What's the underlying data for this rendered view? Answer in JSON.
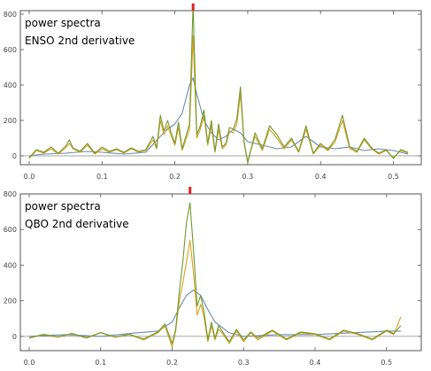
{
  "chart_data": [
    {
      "type": "line",
      "annotations": [
        "power spectra",
        "ENSO 2nd derivative"
      ],
      "xlim": [
        0.0,
        0.52
      ],
      "ylim": [
        -50,
        820
      ],
      "xticks": [
        0.0,
        0.1,
        0.2,
        0.3,
        0.4,
        0.5
      ],
      "xtick_labels": [
        "0.0",
        "0.1",
        "0.2",
        "0.3",
        "0.4",
        "0.5"
      ],
      "yticks": [
        0,
        200,
        400,
        600,
        800
      ],
      "ytick_labels": [
        "0",
        "200",
        "400",
        "600",
        "800"
      ],
      "grid": false,
      "marker": {
        "x": 0.225
      },
      "series": [
        {
          "color": "#6a8caf",
          "x": [
            0.0,
            0.02,
            0.05,
            0.08,
            0.1,
            0.13,
            0.16,
            0.18,
            0.19,
            0.2,
            0.21,
            0.22,
            0.225,
            0.23,
            0.24,
            0.25,
            0.26,
            0.27,
            0.28,
            0.29,
            0.3,
            0.32,
            0.34,
            0.36,
            0.38,
            0.4,
            0.42,
            0.44,
            0.46,
            0.48,
            0.5,
            0.52
          ],
          "values": [
            0,
            10,
            15,
            25,
            20,
            10,
            20,
            110,
            150,
            180,
            240,
            400,
            440,
            350,
            200,
            130,
            90,
            110,
            150,
            130,
            80,
            60,
            40,
            50,
            110,
            50,
            40,
            50,
            30,
            40,
            30,
            10
          ]
        },
        {
          "color": "#d9a020",
          "x": [
            0.0,
            0.01,
            0.02,
            0.03,
            0.04,
            0.05,
            0.055,
            0.06,
            0.07,
            0.08,
            0.09,
            0.1,
            0.11,
            0.12,
            0.13,
            0.14,
            0.15,
            0.16,
            0.17,
            0.175,
            0.18,
            0.185,
            0.19,
            0.195,
            0.2,
            0.205,
            0.21,
            0.215,
            0.22,
            0.225,
            0.23,
            0.235,
            0.24,
            0.245,
            0.25,
            0.255,
            0.26,
            0.265,
            0.27,
            0.275,
            0.28,
            0.285,
            0.29,
            0.295,
            0.3,
            0.31,
            0.32,
            0.33,
            0.34,
            0.35,
            0.36,
            0.37,
            0.38,
            0.39,
            0.4,
            0.41,
            0.42,
            0.43,
            0.44,
            0.45,
            0.46,
            0.47,
            0.48,
            0.49,
            0.5,
            0.51,
            0.52
          ],
          "values": [
            -15,
            30,
            15,
            40,
            10,
            45,
            70,
            40,
            20,
            60,
            10,
            40,
            20,
            35,
            15,
            40,
            20,
            30,
            90,
            40,
            200,
            120,
            170,
            110,
            60,
            160,
            30,
            90,
            150,
            680,
            100,
            150,
            230,
            60,
            170,
            20,
            150,
            40,
            60,
            140,
            130,
            180,
            350,
            70,
            -30,
            110,
            30,
            150,
            100,
            40,
            90,
            20,
            150,
            10,
            60,
            30,
            80,
            200,
            40,
            20,
            90,
            40,
            10,
            30,
            -10,
            30,
            15
          ]
        },
        {
          "color": "#6f9a2e",
          "x": [
            0.0,
            0.01,
            0.02,
            0.03,
            0.04,
            0.05,
            0.055,
            0.06,
            0.07,
            0.08,
            0.09,
            0.1,
            0.11,
            0.12,
            0.13,
            0.14,
            0.15,
            0.16,
            0.17,
            0.175,
            0.18,
            0.185,
            0.19,
            0.195,
            0.2,
            0.205,
            0.21,
            0.215,
            0.22,
            0.225,
            0.23,
            0.235,
            0.24,
            0.245,
            0.25,
            0.255,
            0.26,
            0.265,
            0.27,
            0.275,
            0.28,
            0.285,
            0.29,
            0.295,
            0.3,
            0.31,
            0.32,
            0.33,
            0.34,
            0.35,
            0.36,
            0.37,
            0.38,
            0.39,
            0.4,
            0.41,
            0.42,
            0.43,
            0.44,
            0.45,
            0.46,
            0.47,
            0.48,
            0.49,
            0.5,
            0.51,
            0.52
          ],
          "values": [
            -10,
            35,
            20,
            50,
            15,
            55,
            90,
            45,
            25,
            70,
            15,
            50,
            25,
            40,
            20,
            45,
            25,
            35,
            110,
            45,
            230,
            140,
            200,
            130,
            70,
            190,
            40,
            110,
            180,
            860,
            120,
            170,
            260,
            70,
            200,
            25,
            180,
            50,
            70,
            160,
            150,
            210,
            390,
            80,
            -40,
            130,
            40,
            170,
            120,
            50,
            100,
            25,
            170,
            15,
            70,
            35,
            95,
            230,
            50,
            25,
            100,
            45,
            15,
            35,
            -15,
            35,
            20
          ]
        }
      ]
    },
    {
      "type": "line",
      "annotations": [
        "power spectra",
        "QBO 2nd derivative"
      ],
      "xlim": [
        0.0,
        0.53
      ],
      "ylim": [
        -80,
        800
      ],
      "xticks": [
        0.0,
        0.1,
        0.2,
        0.3,
        0.4,
        0.5
      ],
      "xtick_labels": [
        "0.0",
        "0.1",
        "0.2",
        "0.3",
        "0.4",
        "0.5"
      ],
      "yticks": [
        0,
        200,
        400,
        600,
        800
      ],
      "ytick_labels": [
        "0",
        "200",
        "400",
        "600",
        "800"
      ],
      "grid": false,
      "marker": {
        "x": 0.225
      },
      "series": [
        {
          "color": "#6a8caf",
          "x": [
            0.0,
            0.05,
            0.1,
            0.15,
            0.18,
            0.2,
            0.21,
            0.22,
            0.23,
            0.24,
            0.25,
            0.26,
            0.28,
            0.3,
            0.35,
            0.4,
            0.45,
            0.5,
            0.52
          ],
          "values": [
            0,
            10,
            0,
            20,
            30,
            80,
            160,
            230,
            260,
            230,
            150,
            80,
            20,
            0,
            10,
            10,
            20,
            30,
            30
          ]
        },
        {
          "color": "#d9a020",
          "x": [
            0.0,
            0.02,
            0.04,
            0.06,
            0.08,
            0.1,
            0.12,
            0.14,
            0.16,
            0.18,
            0.19,
            0.2,
            0.205,
            0.21,
            0.215,
            0.22,
            0.225,
            0.23,
            0.235,
            0.24,
            0.245,
            0.25,
            0.255,
            0.26,
            0.265,
            0.27,
            0.28,
            0.29,
            0.3,
            0.31,
            0.32,
            0.34,
            0.36,
            0.38,
            0.4,
            0.42,
            0.44,
            0.46,
            0.48,
            0.5,
            0.51,
            0.52
          ],
          "values": [
            -10,
            10,
            -5,
            15,
            -10,
            20,
            -5,
            10,
            -20,
            20,
            60,
            -60,
            30,
            200,
            300,
            420,
            540,
            350,
            120,
            180,
            100,
            -30,
            60,
            -20,
            40,
            20,
            -40,
            30,
            -30,
            20,
            -20,
            30,
            -20,
            20,
            10,
            -20,
            30,
            10,
            -20,
            30,
            10,
            110
          ]
        },
        {
          "color": "#6f9a2e",
          "x": [
            0.0,
            0.02,
            0.04,
            0.06,
            0.08,
            0.1,
            0.12,
            0.14,
            0.16,
            0.18,
            0.19,
            0.2,
            0.205,
            0.21,
            0.215,
            0.22,
            0.225,
            0.23,
            0.235,
            0.24,
            0.245,
            0.25,
            0.255,
            0.26,
            0.265,
            0.27,
            0.28,
            0.29,
            0.3,
            0.31,
            0.32,
            0.34,
            0.36,
            0.38,
            0.4,
            0.42,
            0.44,
            0.46,
            0.48,
            0.5,
            0.51,
            0.52
          ],
          "values": [
            -8,
            12,
            -3,
            17,
            -8,
            22,
            -3,
            12,
            -15,
            25,
            70,
            -40,
            40,
            250,
            420,
            640,
            750,
            480,
            170,
            230,
            130,
            -20,
            80,
            -10,
            60,
            30,
            -30,
            40,
            -20,
            25,
            -10,
            35,
            -15,
            25,
            15,
            -15,
            35,
            15,
            -15,
            35,
            15,
            60
          ]
        }
      ]
    }
  ]
}
